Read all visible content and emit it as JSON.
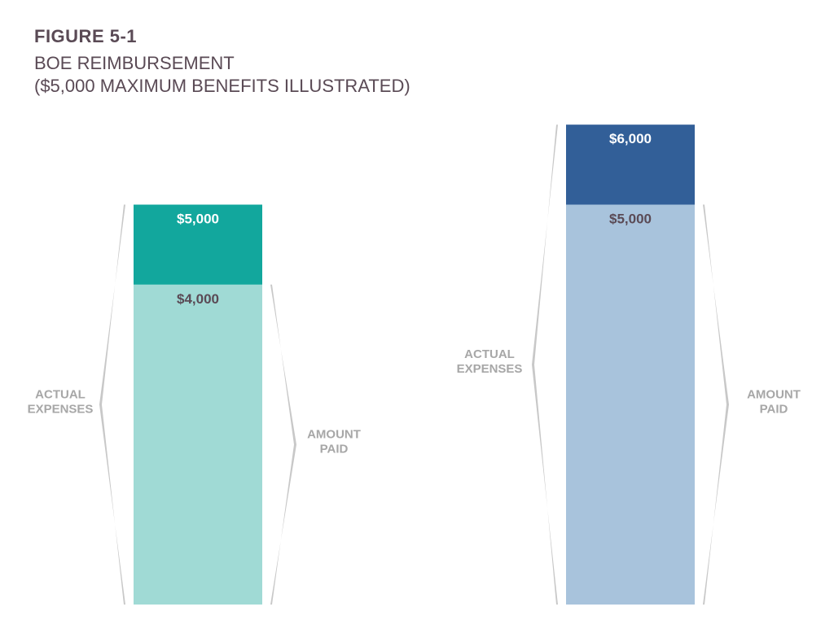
{
  "header": {
    "figure_label": "FIGURE 5-1",
    "title_line1": "BOE REIMBURSEMENT",
    "title_line2": "($5,000 MAXIMUM BENEFITS ILLUSTRATED)"
  },
  "chart_data": {
    "type": "bar",
    "stacked": true,
    "bars": [
      {
        "segments": [
          {
            "label": "$4,000",
            "value": 4000,
            "color": "#a0dad5",
            "label_color": "#5a4a55"
          },
          {
            "label": "$5,000",
            "value": 1000,
            "color": "#12a79d",
            "label_color": "#ffffff"
          }
        ],
        "left_label": [
          "ACTUAL",
          "EXPENSES"
        ],
        "right_label": [
          "AMOUNT",
          "PAID"
        ]
      },
      {
        "segments": [
          {
            "label": "$5,000",
            "value": 5000,
            "color": "#a8c3dc",
            "label_color": "#5a4a55"
          },
          {
            "label": "$6,000",
            "value": 1000,
            "color": "#325f98",
            "label_color": "#ffffff"
          }
        ],
        "left_label": [
          "ACTUAL",
          "EXPENSES"
        ],
        "right_label": [
          "AMOUNT",
          "PAID"
        ]
      }
    ],
    "colors": {
      "bracket": "#c8c8c8",
      "side_label": "#a7a7a7"
    }
  }
}
